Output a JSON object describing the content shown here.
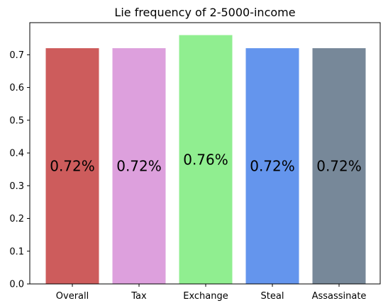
{
  "chart_data": {
    "type": "bar",
    "title": "Lie frequency of 2-5000-income",
    "xlabel": "",
    "ylabel": "",
    "categories": [
      "Overall",
      "Tax",
      "Exchange",
      "Steal",
      "Assassinate"
    ],
    "values": [
      0.72,
      0.72,
      0.76,
      0.72,
      0.72
    ],
    "bar_labels": [
      "0.72%",
      "0.72%",
      "0.76%",
      "0.72%",
      "0.72%"
    ],
    "colors": [
      "#cd5c5c",
      "#dda0dd",
      "#90ee90",
      "#6495ed",
      "#778899"
    ],
    "ylim": [
      0,
      0.798
    ],
    "yticks": [
      0.0,
      0.1,
      0.2,
      0.3,
      0.4,
      0.5,
      0.6,
      0.7
    ],
    "ytick_labels": [
      "0.0",
      "0.1",
      "0.2",
      "0.3",
      "0.4",
      "0.5",
      "0.6",
      "0.7"
    ],
    "grid": false,
    "legend": "none"
  }
}
